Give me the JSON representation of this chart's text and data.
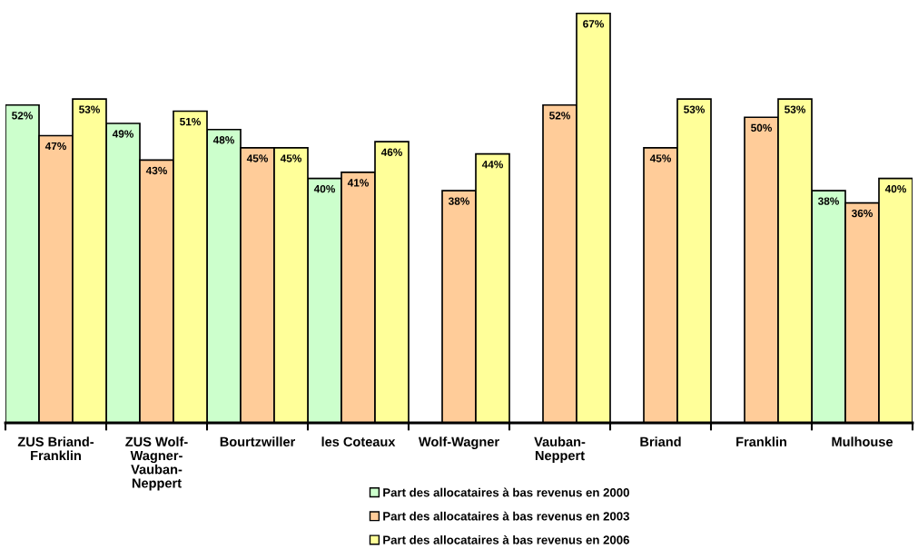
{
  "chart_data": {
    "type": "bar",
    "categories": [
      "ZUS Briand-\nFranklin",
      "ZUS Wolf-\nWagner-\nVauban-\nNeppert",
      "Bourtzwiller",
      "les Coteaux",
      "Wolf-Wagner",
      "Vauban-\nNeppert",
      "Briand",
      "Franklin",
      "Mulhouse"
    ],
    "series": [
      {
        "name": "Part des allocataires à bas revenus en 2000",
        "color": "#ccffcc",
        "values": [
          52,
          49,
          48,
          40,
          null,
          null,
          null,
          null,
          38
        ],
        "value_labels": [
          "52%",
          "49%",
          "48%",
          "40%",
          null,
          null,
          null,
          null,
          "38%"
        ]
      },
      {
        "name": "Part des allocataires à bas revenus en 2003",
        "color": "#ffcc99",
        "values": [
          47,
          43,
          45,
          41,
          38,
          52,
          45,
          50,
          36
        ],
        "value_labels": [
          "47%",
          "43%",
          "45%",
          "41%",
          "38%",
          "52%",
          "45%",
          "50%",
          "36%"
        ]
      },
      {
        "name": "Part des allocataires à bas revenus en 2006",
        "color": "#ffff99",
        "values": [
          53,
          51,
          45,
          46,
          44,
          67,
          53,
          53,
          40
        ],
        "value_labels": [
          "53%",
          "51%",
          "45%",
          "46%",
          "44%",
          "67%",
          "53%",
          "53%",
          "40%"
        ]
      }
    ],
    "legend": "bottom",
    "grid": false,
    "tick_labels": "x"
  }
}
